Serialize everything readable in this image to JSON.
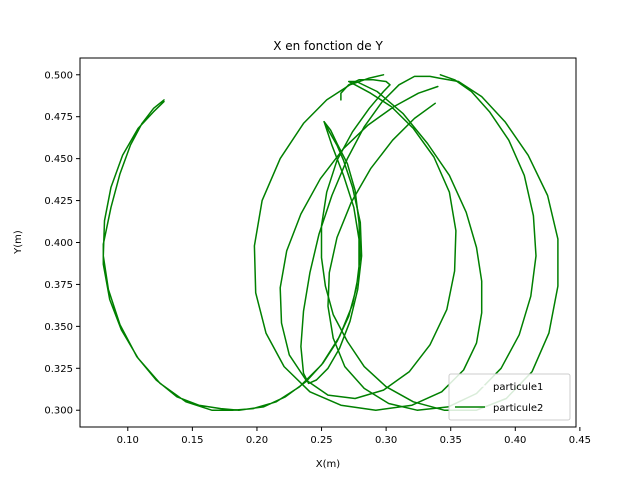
{
  "chart_data": {
    "type": "line",
    "title": "X en fonction de Y",
    "xlabel": "X(m)",
    "ylabel": "Y(m)",
    "xlim": [
      0.063,
      0.447
    ],
    "ylim": [
      0.29,
      0.51
    ],
    "xticks": [
      0.1,
      0.15,
      0.2,
      0.25,
      0.3,
      0.35,
      0.4,
      0.45
    ],
    "xtick_labels": [
      "0.10",
      "0.15",
      "0.20",
      "0.25",
      "0.30",
      "0.35",
      "0.40",
      "0.45"
    ],
    "yticks": [
      0.3,
      0.325,
      0.35,
      0.375,
      0.4,
      0.425,
      0.45,
      0.475,
      0.5
    ],
    "ytick_labels": [
      "0.300",
      "0.325",
      "0.350",
      "0.375",
      "0.400",
      "0.425",
      "0.450",
      "0.475",
      "0.500"
    ],
    "grid": false,
    "legend_position": "lower-right",
    "series": [
      {
        "name": "particule1",
        "color": "#ffffff",
        "points": []
      },
      {
        "name": "particule2",
        "color": "#008000",
        "points": [
          [
            0.128,
            0.485
          ],
          [
            0.12,
            0.48
          ],
          [
            0.111,
            0.471
          ],
          [
            0.102,
            0.458
          ],
          [
            0.094,
            0.441
          ],
          [
            0.087,
            0.421
          ],
          [
            0.081,
            0.399
          ],
          [
            0.081,
            0.387
          ],
          [
            0.086,
            0.366
          ],
          [
            0.095,
            0.348
          ],
          [
            0.108,
            0.331
          ],
          [
            0.125,
            0.316
          ],
          [
            0.145,
            0.305
          ],
          [
            0.165,
            0.3
          ],
          [
            0.181,
            0.3
          ],
          [
            0.197,
            0.301
          ],
          [
            0.215,
            0.305
          ],
          [
            0.233,
            0.314
          ],
          [
            0.25,
            0.327
          ],
          [
            0.264,
            0.344
          ],
          [
            0.274,
            0.363
          ],
          [
            0.279,
            0.382
          ],
          [
            0.279,
            0.402
          ],
          [
            0.275,
            0.421
          ],
          [
            0.267,
            0.44
          ],
          [
            0.258,
            0.458
          ],
          [
            0.252,
            0.472
          ],
          [
            0.257,
            0.467
          ],
          [
            0.262,
            0.459
          ],
          [
            0.27,
            0.447
          ],
          [
            0.276,
            0.431
          ],
          [
            0.279,
            0.412
          ],
          [
            0.28,
            0.392
          ],
          [
            0.277,
            0.373
          ],
          [
            0.271,
            0.356
          ],
          [
            0.262,
            0.341
          ],
          [
            0.251,
            0.328
          ],
          [
            0.238,
            0.317
          ],
          [
            0.222,
            0.308
          ],
          [
            0.205,
            0.302
          ],
          [
            0.186,
            0.3
          ],
          [
            0.172,
            0.301
          ],
          [
            0.155,
            0.303
          ],
          [
            0.138,
            0.308
          ],
          [
            0.122,
            0.318
          ],
          [
            0.107,
            0.332
          ],
          [
            0.094,
            0.351
          ],
          [
            0.085,
            0.372
          ],
          [
            0.081,
            0.392
          ],
          [
            0.082,
            0.413
          ],
          [
            0.087,
            0.433
          ],
          [
            0.096,
            0.452
          ],
          [
            0.108,
            0.468
          ],
          [
            0.12,
            0.478
          ],
          [
            0.128,
            0.484
          ]
        ]
      },
      {
        "name": "",
        "color": "#008000",
        "points": [
          [
            0.252,
            0.472
          ],
          [
            0.256,
            0.466
          ],
          [
            0.262,
            0.458
          ],
          [
            0.267,
            0.449
          ],
          [
            0.274,
            0.433
          ],
          [
            0.28,
            0.412
          ],
          [
            0.281,
            0.392
          ],
          [
            0.278,
            0.372
          ],
          [
            0.272,
            0.353
          ],
          [
            0.264,
            0.337
          ],
          [
            0.255,
            0.325
          ],
          [
            0.246,
            0.318
          ],
          [
            0.24,
            0.316
          ],
          [
            0.236,
            0.322
          ],
          [
            0.234,
            0.338
          ],
          [
            0.236,
            0.359
          ],
          [
            0.241,
            0.382
          ],
          [
            0.248,
            0.405
          ],
          [
            0.258,
            0.428
          ],
          [
            0.27,
            0.45
          ],
          [
            0.283,
            0.469
          ],
          [
            0.297,
            0.484
          ],
          [
            0.31,
            0.494
          ],
          [
            0.322,
            0.499
          ],
          [
            0.334,
            0.499
          ],
          [
            0.341,
            0.498
          ],
          [
            0.356,
            0.496
          ],
          [
            0.374,
            0.487
          ],
          [
            0.392,
            0.472
          ],
          [
            0.41,
            0.452
          ],
          [
            0.425,
            0.428
          ],
          [
            0.433,
            0.402
          ],
          [
            0.433,
            0.374
          ],
          [
            0.426,
            0.346
          ],
          [
            0.413,
            0.323
          ],
          [
            0.393,
            0.307
          ],
          [
            0.37,
            0.3
          ],
          [
            0.345,
            0.3
          ],
          [
            0.321,
            0.305
          ],
          [
            0.3,
            0.314
          ],
          [
            0.283,
            0.326
          ],
          [
            0.27,
            0.341
          ],
          [
            0.259,
            0.357
          ],
          [
            0.253,
            0.374
          ],
          [
            0.25,
            0.391
          ],
          [
            0.25,
            0.41
          ],
          [
            0.254,
            0.43
          ],
          [
            0.262,
            0.449
          ],
          [
            0.274,
            0.466
          ],
          [
            0.287,
            0.48
          ],
          [
            0.298,
            0.49
          ],
          [
            0.303,
            0.494
          ],
          [
            0.3,
            0.496
          ],
          [
            0.29,
            0.497
          ],
          [
            0.279,
            0.497
          ],
          [
            0.271,
            0.494
          ],
          [
            0.265,
            0.489
          ],
          [
            0.265,
            0.485
          ]
        ]
      },
      {
        "name": "",
        "color": "#008000",
        "points": [
          [
            0.298,
            0.5
          ],
          [
            0.287,
            0.498
          ],
          [
            0.272,
            0.494
          ],
          [
            0.254,
            0.485
          ],
          [
            0.236,
            0.471
          ],
          [
            0.218,
            0.45
          ],
          [
            0.204,
            0.425
          ],
          [
            0.198,
            0.398
          ],
          [
            0.199,
            0.37
          ],
          [
            0.207,
            0.346
          ],
          [
            0.221,
            0.326
          ],
          [
            0.241,
            0.311
          ],
          [
            0.265,
            0.303
          ],
          [
            0.292,
            0.3
          ],
          [
            0.32,
            0.303
          ],
          [
            0.343,
            0.311
          ],
          [
            0.36,
            0.324
          ],
          [
            0.37,
            0.34
          ],
          [
            0.374,
            0.358
          ],
          [
            0.374,
            0.377
          ],
          [
            0.37,
            0.397
          ],
          [
            0.362,
            0.418
          ],
          [
            0.349,
            0.44
          ],
          [
            0.332,
            0.459
          ],
          [
            0.313,
            0.477
          ],
          [
            0.293,
            0.49
          ],
          [
            0.277,
            0.496
          ],
          [
            0.271,
            0.496
          ],
          [
            0.276,
            0.494
          ],
          [
            0.288,
            0.489
          ],
          [
            0.304,
            0.481
          ],
          [
            0.321,
            0.468
          ],
          [
            0.337,
            0.451
          ],
          [
            0.349,
            0.43
          ],
          [
            0.354,
            0.407
          ],
          [
            0.353,
            0.383
          ],
          [
            0.347,
            0.36
          ],
          [
            0.334,
            0.339
          ],
          [
            0.318,
            0.323
          ],
          [
            0.298,
            0.312
          ],
          [
            0.276,
            0.307
          ],
          [
            0.255,
            0.309
          ],
          [
            0.238,
            0.318
          ],
          [
            0.225,
            0.333
          ],
          [
            0.219,
            0.352
          ],
          [
            0.218,
            0.373
          ],
          [
            0.223,
            0.395
          ],
          [
            0.234,
            0.417
          ],
          [
            0.249,
            0.438
          ],
          [
            0.267,
            0.456
          ],
          [
            0.286,
            0.47
          ],
          [
            0.306,
            0.481
          ],
          [
            0.325,
            0.489
          ],
          [
            0.34,
            0.493
          ]
        ]
      },
      {
        "name": "",
        "color": "#008000",
        "points": [
          [
            0.342,
            0.5
          ],
          [
            0.353,
            0.497
          ],
          [
            0.366,
            0.49
          ],
          [
            0.38,
            0.478
          ],
          [
            0.395,
            0.461
          ],
          [
            0.407,
            0.44
          ],
          [
            0.414,
            0.416
          ],
          [
            0.416,
            0.392
          ],
          [
            0.412,
            0.368
          ],
          [
            0.403,
            0.345
          ],
          [
            0.389,
            0.325
          ],
          [
            0.37,
            0.31
          ],
          [
            0.348,
            0.302
          ],
          [
            0.324,
            0.3
          ],
          [
            0.302,
            0.304
          ],
          [
            0.283,
            0.313
          ],
          [
            0.268,
            0.326
          ],
          [
            0.259,
            0.343
          ],
          [
            0.255,
            0.362
          ],
          [
            0.256,
            0.382
          ],
          [
            0.262,
            0.403
          ],
          [
            0.273,
            0.424
          ],
          [
            0.288,
            0.444
          ],
          [
            0.305,
            0.461
          ],
          [
            0.322,
            0.474
          ],
          [
            0.338,
            0.483
          ]
        ]
      }
    ]
  }
}
